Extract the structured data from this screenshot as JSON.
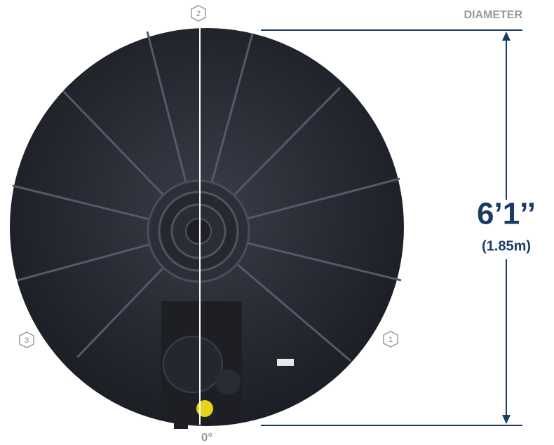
{
  "labels": {
    "diameter": "DIAMETER",
    "imperial": "6’1’’",
    "metric": "(1.85m)",
    "angle": "0°"
  },
  "markers": [
    "2",
    "3",
    "1"
  ]
}
